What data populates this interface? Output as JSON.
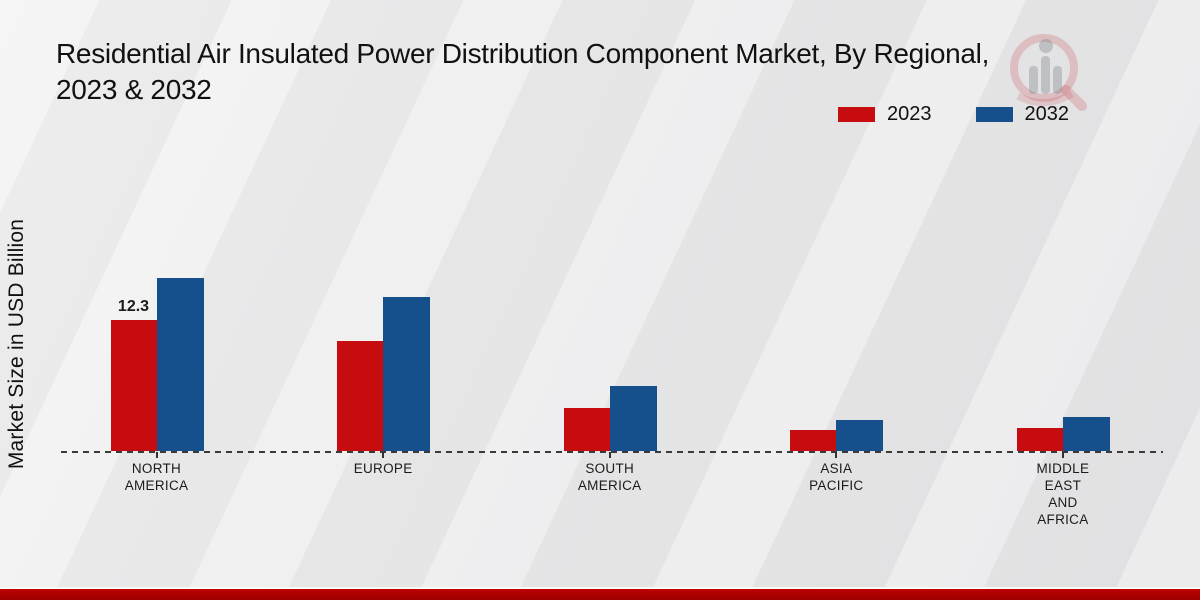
{
  "title": "Residential Air Insulated Power Distribution Component Market, By Regional,\n2023 & 2032",
  "y_axis_label": "Market Size in USD Billion",
  "watermark_name": "market-research-future-logo",
  "footer": {
    "bar_color": "#c00000"
  },
  "chart_data": {
    "type": "bar",
    "title": "Residential Air Insulated Power Distribution Component Market, By Regional, 2023 & 2032",
    "xlabel": "",
    "ylabel": "Market Size in USD Billion",
    "categories": [
      "NORTH\nAMERICA",
      "EUROPE",
      "SOUTH\nAMERICA",
      "ASIA\nPACIFIC",
      "MIDDLE\nEAST\nAND\nAFRICA"
    ],
    "series": [
      {
        "name": "2023",
        "color": "#c60c0e",
        "values": [
          12.3,
          10.3,
          4.0,
          2.0,
          2.2
        ]
      },
      {
        "name": "2032",
        "color": "#15508c",
        "values": [
          16.2,
          14.5,
          6.1,
          2.9,
          3.2
        ]
      }
    ],
    "data_labels": [
      {
        "series_index": 0,
        "category_index": 0,
        "text": "12.3"
      }
    ],
    "ylim": [
      0,
      18
    ],
    "grid": "off",
    "legend_position": "top-right",
    "baseline_style": "dashed-zero-line"
  }
}
